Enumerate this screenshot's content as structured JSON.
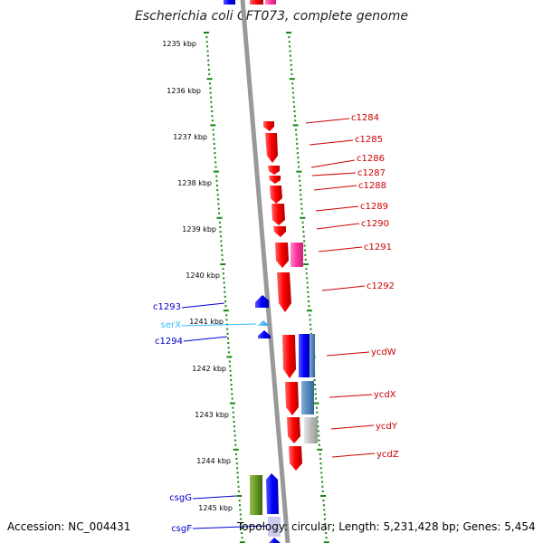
{
  "title": "Escherichia coli CFT073, complete genome",
  "accession": "Accession: NC_004431",
  "topology": "Topology: circular; Length: 5,231,428 bp; Genes: 5,454",
  "tick_labels": [
    "1235 kbp",
    "1236 kbp",
    "1237 kbp",
    "1238 kbp",
    "1239 kbp",
    "1240 kbp",
    "1241 kbp",
    "1242 kbp",
    "1243 kbp",
    "1244 kbp",
    "1245 kbp"
  ],
  "colors": {
    "forward_gene": "#ff0000",
    "pink_gene": "#ff3399",
    "reverse_gene": "#0000ff",
    "trna": "#33bbff",
    "green_gene": "#669922",
    "steel_gene": "#5588bb",
    "grey_gene": "#bbbbbb",
    "tick_green": "#118811",
    "backbone": "#888888"
  },
  "genes_right": [
    {
      "name": "c1284",
      "color": "#cc0000"
    },
    {
      "name": "c1285",
      "color": "#cc0000"
    },
    {
      "name": "c1286",
      "color": "#cc0000"
    },
    {
      "name": "c1287",
      "color": "#cc0000"
    },
    {
      "name": "c1288",
      "color": "#cc0000"
    },
    {
      "name": "c1289",
      "color": "#cc0000"
    },
    {
      "name": "c1290",
      "color": "#cc0000"
    },
    {
      "name": "c1291",
      "color": "#cc0000"
    },
    {
      "name": "c1292",
      "color": "#cc0000"
    },
    {
      "name": "ycdW",
      "color": "#cc0000"
    },
    {
      "name": "ycdX",
      "color": "#cc0000"
    },
    {
      "name": "ycdY",
      "color": "#cc0000"
    },
    {
      "name": "ycdZ",
      "color": "#cc0000"
    }
  ],
  "genes_left": [
    {
      "name": "c1293",
      "color": "#0000cc"
    },
    {
      "name": "serX",
      "color": "#33bbff"
    },
    {
      "name": "c1294",
      "color": "#0000cc"
    },
    {
      "name": "csgG",
      "color": "#0000cc"
    },
    {
      "name": "csgF",
      "color": "#0000cc"
    }
  ]
}
